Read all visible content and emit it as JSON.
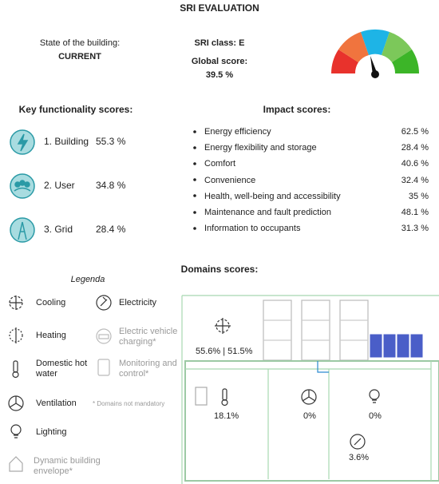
{
  "title": "SRI EVALUATION",
  "state": {
    "label": "State of the building:",
    "value": "CURRENT"
  },
  "sri_class": "SRI class: E",
  "global_score": {
    "label": "Global score:",
    "value": "39.5 %"
  },
  "key_functionality": {
    "title": "Key functionality scores:",
    "items": [
      {
        "label": "1. Building",
        "score": "55.3 %"
      },
      {
        "label": "2. User",
        "score": "34.8 %"
      },
      {
        "label": "3. Grid",
        "score": "28.4 %"
      }
    ]
  },
  "impact": {
    "title": "Impact scores:",
    "items": [
      {
        "label": "Energy efficiency",
        "score": "62.5 %"
      },
      {
        "label": "Energy flexibility and storage",
        "score": "28.4 %"
      },
      {
        "label": "Comfort",
        "score": "40.6 %"
      },
      {
        "label": "Convenience",
        "score": "32.4 %"
      },
      {
        "label": "Health, well-being and accessibility",
        "score": "35 %"
      },
      {
        "label": "Maintenance and fault prediction",
        "score": "48.1 %"
      },
      {
        "label": "Information to occupants",
        "score": "31.3 %"
      }
    ]
  },
  "domains": {
    "title": "Domains scores:",
    "legend_title": "Legenda",
    "legend": [
      "Cooling",
      "Heating",
      "Domestic hot water",
      "Ventilation",
      "Lighting",
      "Dynamic building envelope*",
      "Electricity",
      "Electric vehicle charging*",
      "Monitoring and control*"
    ],
    "note": "* Domains not mandatory",
    "scores": {
      "cooling_heating": "55.6% | 51.5%",
      "hot_water": "18.1%",
      "ventilation": "0%",
      "lighting": "0%",
      "electricity": "3.6%"
    }
  }
}
